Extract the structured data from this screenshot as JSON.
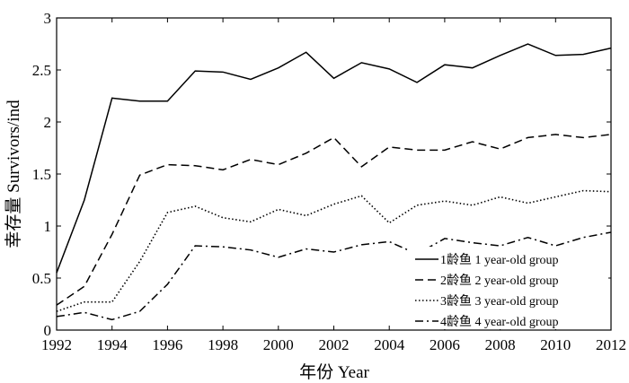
{
  "chart_data": {
    "type": "line",
    "xlabel": "年份 Year",
    "ylabel": "幸存量 Survivors/ind",
    "xlim": [
      1992,
      2012
    ],
    "ylim": [
      0,
      3
    ],
    "xticks": [
      "1992",
      "1994",
      "1996",
      "1998",
      "2000",
      "2002",
      "2004",
      "2006",
      "2008",
      "2010",
      "2012"
    ],
    "yticks": [
      "0",
      "0.5",
      "1",
      "1.5",
      "2",
      "2.5",
      "3"
    ],
    "x": [
      1992,
      1993,
      1994,
      1995,
      1996,
      1997,
      1998,
      1999,
      2000,
      2001,
      2002,
      2003,
      2004,
      2005,
      2006,
      2007,
      2008,
      2009,
      2010,
      2011,
      2012
    ],
    "legend_position": "bottom-right",
    "series": [
      {
        "name": "1龄鱼 1 year-old group",
        "style": "solid",
        "values": [
          0.55,
          1.25,
          2.23,
          2.2,
          2.2,
          2.49,
          2.48,
          2.41,
          2.52,
          2.67,
          2.42,
          2.57,
          2.51,
          2.38,
          2.55,
          2.52,
          2.64,
          2.75,
          2.64,
          2.65,
          2.71
        ]
      },
      {
        "name": "2龄鱼 2 year-old group",
        "style": "dashed",
        "values": [
          0.24,
          0.42,
          0.92,
          1.49,
          1.59,
          1.58,
          1.54,
          1.64,
          1.59,
          1.7,
          1.85,
          1.57,
          1.76,
          1.73,
          1.73,
          1.81,
          1.74,
          1.85,
          1.88,
          1.85,
          1.88
        ]
      },
      {
        "name": "3龄鱼 3 year-old group",
        "style": "dotted",
        "values": [
          0.18,
          0.27,
          0.27,
          0.66,
          1.13,
          1.19,
          1.08,
          1.04,
          1.16,
          1.1,
          1.21,
          1.29,
          1.03,
          1.2,
          1.24,
          1.2,
          1.28,
          1.22,
          1.28,
          1.34,
          1.33
        ]
      },
      {
        "name": "4龄鱼 4 year-old group",
        "style": "dashdot",
        "values": [
          0.13,
          0.17,
          0.1,
          0.18,
          0.44,
          0.81,
          0.8,
          0.77,
          0.7,
          0.78,
          0.75,
          0.82,
          0.85,
          0.73,
          0.88,
          0.84,
          0.81,
          0.89,
          0.81,
          0.89,
          0.94
        ]
      }
    ],
    "colors": {
      "line": "#000000",
      "background": "#ffffff"
    }
  }
}
